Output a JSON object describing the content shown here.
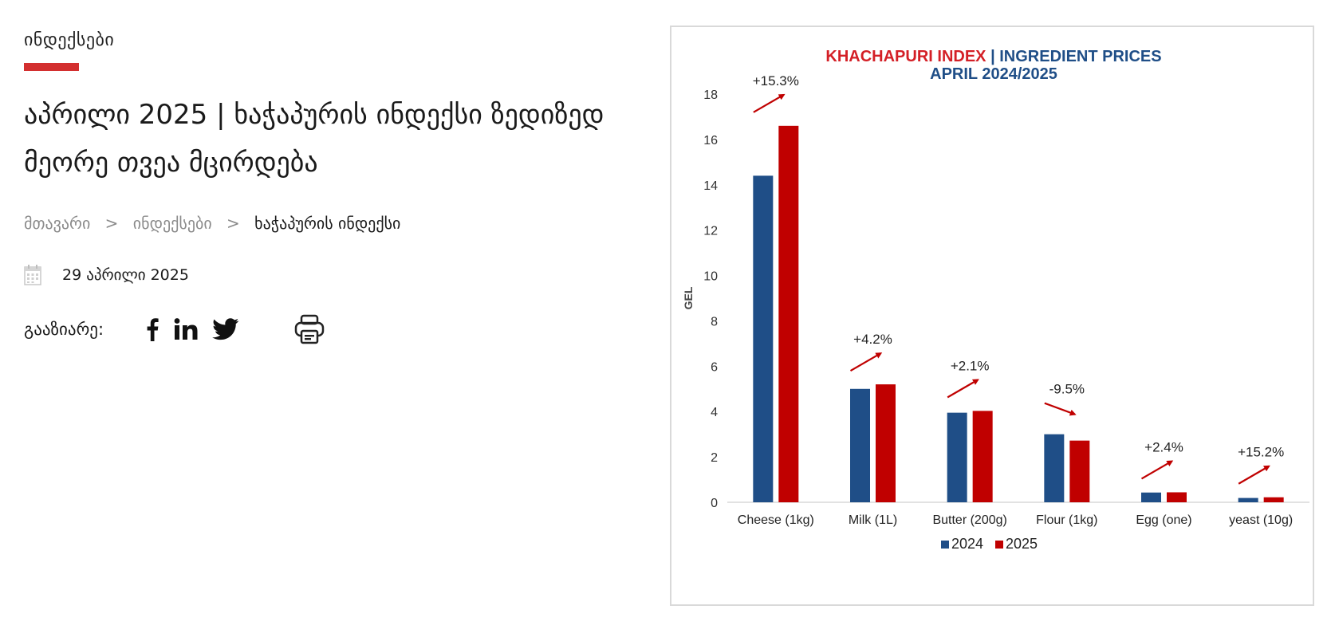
{
  "category": "ინდექსები",
  "title": "აპრილი 2025 | ხაჭაპურის ინდექსი ზედიზედ მეორე თვეა მცირდება",
  "breadcrumb": {
    "home": "მთავარი",
    "sep": ">",
    "section": "ინდექსები",
    "current": "ხაჭაპურის ინდექსი"
  },
  "date": "29 აპრილი 2025",
  "share": {
    "label": "გააზიარე:",
    "icons": [
      "facebook-icon",
      "linkedin-icon",
      "twitter-icon",
      "print-icon"
    ]
  },
  "colors": {
    "accent": "#d32f2f",
    "series_2024": "#1f4e87",
    "series_2025": "#c00000",
    "title_red": "#d41f26",
    "title_blue": "#1f4e87"
  },
  "chart_data": {
    "type": "bar",
    "title_part1": "KHACHAPURI INDEX",
    "title_sep": " | ",
    "title_part2": "INGREDIENT PRICES",
    "subtitle": "APRIL 2024/2025",
    "ylabel": "GEL",
    "xlabel": "",
    "ylim": [
      0,
      18
    ],
    "yticks": [
      0,
      2,
      4,
      6,
      8,
      10,
      12,
      14,
      16,
      18
    ],
    "grid": false,
    "legend_position": "bottom",
    "categories": [
      "Cheese (1kg)",
      "Milk (1L)",
      "Butter (200g)",
      "Flour (1kg)",
      "Egg (one)",
      "yeast (10g)"
    ],
    "series": [
      {
        "name": "2024",
        "values": [
          14.4,
          5.0,
          3.95,
          3.0,
          0.43,
          0.19
        ]
      },
      {
        "name": "2025",
        "values": [
          16.6,
          5.2,
          4.03,
          2.72,
          0.44,
          0.22
        ]
      }
    ],
    "annotations": [
      {
        "category": "Cheese (1kg)",
        "text": "+15.3%",
        "direction": "up"
      },
      {
        "category": "Milk (1L)",
        "text": "+4.2%",
        "direction": "up"
      },
      {
        "category": "Butter (200g)",
        "text": "+2.1%",
        "direction": "up"
      },
      {
        "category": "Flour (1kg)",
        "text": "-9.5%",
        "direction": "down"
      },
      {
        "category": "Egg (one)",
        "text": "+2.4%",
        "direction": "up"
      },
      {
        "category": "yeast (10g)",
        "text": "+15.2%",
        "direction": "up"
      }
    ]
  }
}
